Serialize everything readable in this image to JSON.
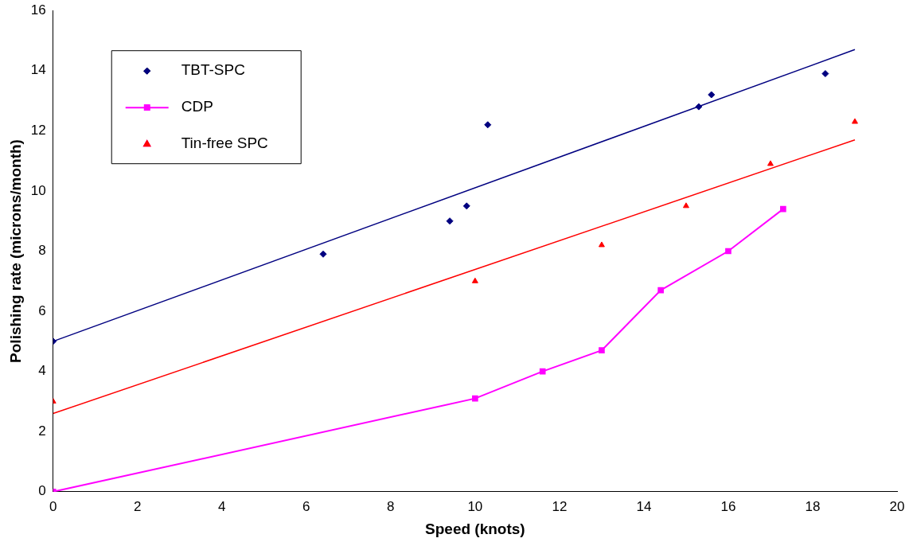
{
  "chart_data": {
    "type": "scatter",
    "xlabel": "Speed (knots)",
    "ylabel": "Polishing rate (microns/month)",
    "xlim": [
      0,
      20
    ],
    "xticks": [
      0,
      2,
      4,
      6,
      8,
      10,
      12,
      14,
      16,
      18,
      20
    ],
    "ylim": [
      0,
      16
    ],
    "yticks": [
      0,
      2,
      4,
      6,
      8,
      10,
      12,
      14,
      16
    ],
    "grid": false,
    "legend": "top left",
    "series": [
      {
        "name": "TBT-SPC",
        "type": "scatter",
        "color": "#000080",
        "marker": "diamond",
        "x": [
          0,
          6.4,
          9.4,
          9.8,
          10.3,
          15.3,
          15.6,
          18.3
        ],
        "values": [
          5.0,
          7.9,
          9.0,
          9.5,
          12.2,
          12.8,
          13.2,
          13.9
        ]
      },
      {
        "name": "CDP",
        "type": "line",
        "color": "#ff00ff",
        "marker": "square",
        "x": [
          0,
          10,
          11.6,
          13,
          14.4,
          16,
          17.3
        ],
        "values": [
          0,
          3.1,
          4.0,
          4.7,
          6.7,
          8.0,
          9.4
        ]
      },
      {
        "name": "Tin-free SPC",
        "type": "scatter",
        "color": "#ff0000",
        "marker": "triangle",
        "x": [
          0,
          10,
          13,
          15,
          17,
          19
        ],
        "values": [
          3.0,
          7.0,
          8.2,
          9.5,
          10.9,
          12.3
        ]
      },
      {
        "type": "line",
        "color": "#000080",
        "marker": "none",
        "x": [
          0,
          19
        ],
        "values": [
          5.0,
          14.7
        ]
      },
      {
        "type": "line",
        "color": "#ff0000",
        "marker": "none",
        "x": [
          0,
          19
        ],
        "values": [
          2.6,
          11.7
        ]
      }
    ]
  }
}
